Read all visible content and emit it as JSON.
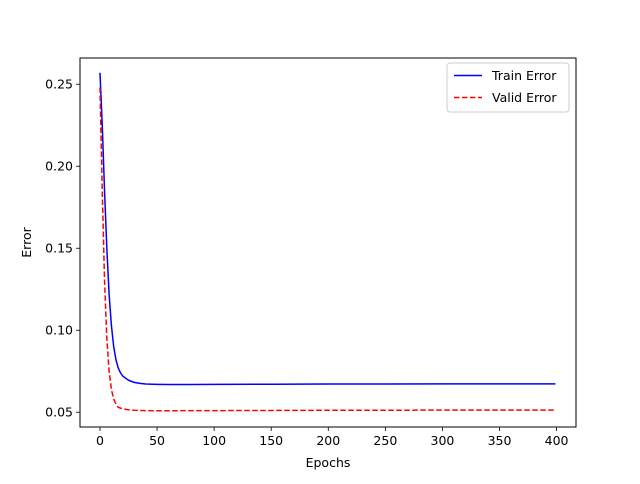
{
  "chart_data": {
    "type": "line",
    "title": "",
    "xlabel": "Epochs",
    "ylabel": "Error",
    "xlim": [
      -17.5,
      417
    ],
    "ylim": [
      0.041,
      0.266
    ],
    "x_ticks": [
      0,
      50,
      100,
      150,
      200,
      250,
      300,
      350,
      400
    ],
    "x_tick_labels": [
      "0",
      "50",
      "100",
      "150",
      "200",
      "250",
      "300",
      "350",
      "400"
    ],
    "y_ticks": [
      0.05,
      0.1,
      0.15,
      0.2,
      0.25
    ],
    "y_tick_labels": [
      "0.05",
      "0.10",
      "0.15",
      "0.20",
      "0.25"
    ],
    "grid": false,
    "legend_position": "top-right",
    "series": [
      {
        "name": "Train Error",
        "color": "#0000ff",
        "line_style": "solid",
        "x": [
          0,
          2,
          4,
          6,
          8,
          10,
          12,
          14,
          16,
          18,
          20,
          25,
          30,
          35,
          40,
          50,
          60,
          70,
          80,
          100,
          150,
          200,
          250,
          300,
          350,
          399
        ],
        "y": [
          0.257,
          0.225,
          0.185,
          0.15,
          0.122,
          0.103,
          0.09,
          0.082,
          0.077,
          0.074,
          0.072,
          0.0695,
          0.0682,
          0.0676,
          0.0672,
          0.067,
          0.0669,
          0.0669,
          0.0669,
          0.067,
          0.0671,
          0.0672,
          0.0672,
          0.0673,
          0.0673,
          0.0673
        ]
      },
      {
        "name": "Valid Error",
        "color": "#ff0000",
        "line_style": "dashed",
        "x": [
          0,
          2,
          4,
          6,
          8,
          10,
          12,
          14,
          16,
          18,
          20,
          25,
          30,
          40,
          50,
          60,
          80,
          100,
          150,
          200,
          250,
          300,
          350,
          399
        ],
        "y": [
          0.248,
          0.185,
          0.13,
          0.095,
          0.075,
          0.064,
          0.058,
          0.055,
          0.053,
          0.0525,
          0.052,
          0.0515,
          0.0512,
          0.051,
          0.0509,
          0.0509,
          0.051,
          0.051,
          0.0511,
          0.0512,
          0.0512,
          0.0513,
          0.0513,
          0.0513
        ]
      }
    ]
  }
}
